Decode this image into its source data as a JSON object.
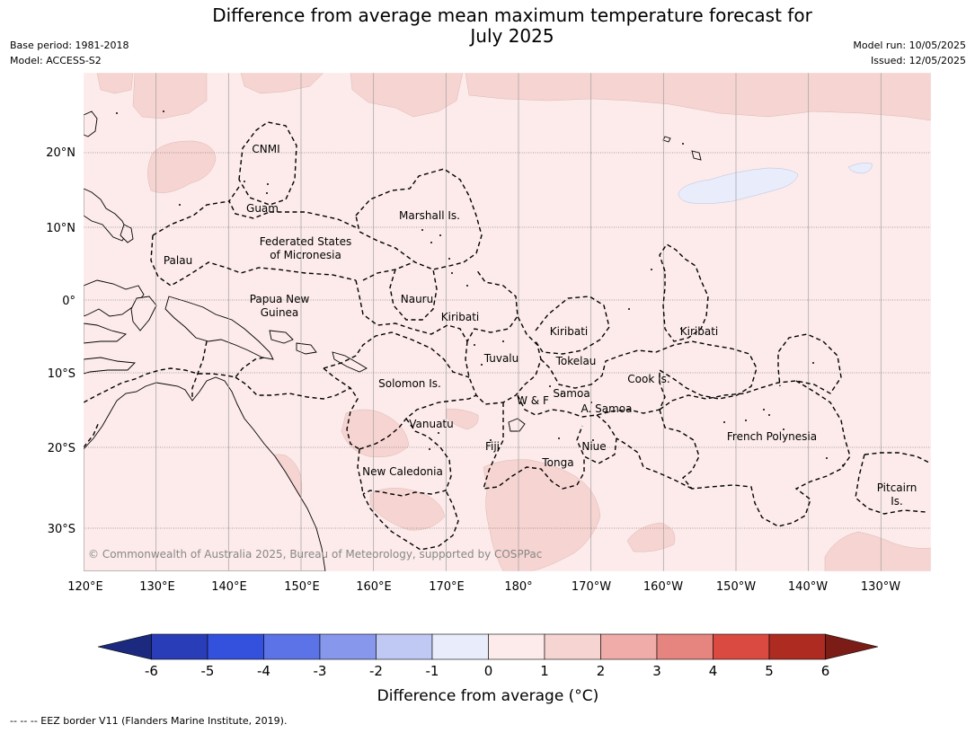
{
  "title_line1": "Difference from average mean maximum temperature forecast for",
  "title_line2": "July 2025",
  "meta": {
    "base_period": "Base period: 1981-2018",
    "model": "Model: ACCESS-S2",
    "model_run": "Model run: 10/05/2025",
    "issued": "Issued: 12/05/2025"
  },
  "copyright": "© Commonwealth of Australia 2025, Bureau of Meteorology, supported by COSPPac",
  "lon_ticks": [
    "120°E",
    "130°E",
    "140°E",
    "150°E",
    "160°E",
    "170°E",
    "180°",
    "170°W",
    "160°W",
    "150°W",
    "140°W",
    "130°W"
  ],
  "lat_ticks": [
    "20°N",
    "10°N",
    "0°",
    "10°S",
    "20°S",
    "30°S"
  ],
  "region_labels": [
    {
      "text": "CNMI"
    },
    {
      "text": "Guam"
    },
    {
      "text": "Marshall Is."
    },
    {
      "text": "Federated States"
    },
    {
      "text": "of Micronesia"
    },
    {
      "text": "Palau"
    },
    {
      "text": "Papua New"
    },
    {
      "text": "Guinea"
    },
    {
      "text": "Nauru"
    },
    {
      "text": "Kiribati"
    },
    {
      "text": "Kiribati"
    },
    {
      "text": "Kiribati"
    },
    {
      "text": "Tuvalu"
    },
    {
      "text": "Tokelau"
    },
    {
      "text": "Cook Is."
    },
    {
      "text": "Solomon Is."
    },
    {
      "text": "Samoa"
    },
    {
      "text": "W & F"
    },
    {
      "text": "A. Samoa"
    },
    {
      "text": "Vanuatu"
    },
    {
      "text": "Fiji"
    },
    {
      "text": "Niue"
    },
    {
      "text": "French Polynesia"
    },
    {
      "text": "Tonga"
    },
    {
      "text": "New Caledonia"
    },
    {
      "text": "Pitcairn"
    },
    {
      "text": "Is."
    }
  ],
  "colorbar": {
    "label": "Difference from average (°C)",
    "ticks": [
      "-6",
      "-5",
      "-4",
      "-3",
      "-2",
      "-1",
      "0",
      "1",
      "2",
      "3",
      "4",
      "5",
      "6"
    ],
    "colors": [
      "#1b2a7e",
      "#2a3db8",
      "#3451de",
      "#5b73e6",
      "#8797ec",
      "#c0c8f4",
      "#e8ecfb",
      "#fcebea",
      "#f6d4d1",
      "#efaca8",
      "#e6847f",
      "#db4a40",
      "#ae2b22",
      "#7b1c17"
    ]
  },
  "footnote": "--  --  -- EEZ border V11 (Flanders Marine Institute, 2019)."
}
